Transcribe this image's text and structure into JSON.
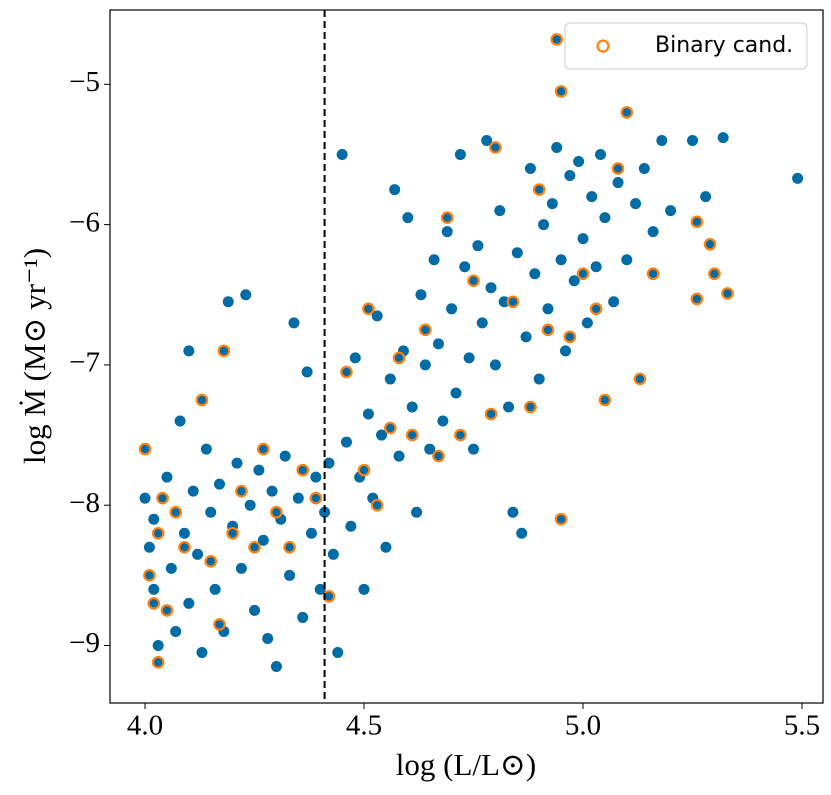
{
  "chart_data": {
    "type": "scatter",
    "xlabel": "log (L/L⊙)",
    "ylabel": "log Ṁ (M⊙ yr⁻¹)",
    "xlim": [
      3.92,
      5.548
    ],
    "ylim": [
      -9.41,
      -4.47
    ],
    "xticks": [
      {
        "value": 4,
        "label": "4.0"
      },
      {
        "value": 4.5,
        "label": "4.5"
      },
      {
        "value": 5,
        "label": "5.0"
      },
      {
        "value": 5.5,
        "label": "5.5"
      }
    ],
    "yticks": [
      {
        "value": -5,
        "label": "−5"
      },
      {
        "value": -6,
        "label": "−6"
      },
      {
        "value": -7,
        "label": "−7"
      },
      {
        "value": -8,
        "label": "−8"
      },
      {
        "value": -9,
        "label": "−9"
      }
    ],
    "vline": 4.41,
    "vline_color": "#000000",
    "legend": "upper right",
    "series": [
      {
        "color": "#006ba4",
        "marker": "filled",
        "x": [
          4.0,
          4.01,
          4.02,
          4.03,
          4.02,
          4.05,
          4.06,
          4.07,
          4.08,
          4.09,
          4.1,
          4.1,
          4.11,
          4.12,
          4.13,
          4.14,
          4.15,
          4.16,
          4.17,
          4.18,
          4.19,
          4.2,
          4.21,
          4.22,
          4.23,
          4.24,
          4.25,
          4.26,
          4.27,
          4.28,
          4.29,
          4.3,
          4.31,
          4.32,
          4.33,
          4.34,
          4.35,
          4.36,
          4.37,
          4.38,
          4.39,
          4.4,
          4.41,
          4.42,
          4.43,
          4.44,
          4.45,
          4.46,
          4.47,
          4.48,
          4.49,
          4.5,
          4.51,
          4.52,
          4.53,
          4.54,
          4.55,
          4.56,
          4.57,
          4.58,
          4.59,
          4.6,
          4.61,
          4.62,
          4.63,
          4.64,
          4.65,
          4.66,
          4.67,
          4.68,
          4.69,
          4.7,
          4.71,
          4.72,
          4.73,
          4.74,
          4.75,
          4.76,
          4.77,
          4.78,
          4.79,
          4.8,
          4.81,
          4.82,
          4.83,
          4.84,
          4.85,
          4.86,
          4.87,
          4.88,
          4.89,
          4.9,
          4.91,
          4.92,
          4.93,
          4.94,
          4.95,
          4.96,
          4.97,
          4.98,
          4.99,
          5.0,
          5.01,
          5.02,
          5.03,
          5.04,
          5.05,
          5.07,
          5.08,
          5.1,
          5.12,
          5.14,
          5.16,
          5.18,
          5.2,
          5.25,
          5.28,
          5.32,
          5.49
        ],
        "values": [
          -7.95,
          -8.3,
          -8.6,
          -9.0,
          -8.1,
          -7.8,
          -8.45,
          -8.9,
          -7.4,
          -8.2,
          -6.9,
          -8.7,
          -7.9,
          -8.35,
          -9.05,
          -7.6,
          -8.05,
          -8.6,
          -7.85,
          -8.9,
          -6.55,
          -8.15,
          -7.7,
          -8.45,
          -6.5,
          -8.0,
          -8.75,
          -7.75,
          -8.25,
          -8.95,
          -7.9,
          -9.15,
          -8.1,
          -7.65,
          -8.5,
          -6.7,
          -7.95,
          -8.8,
          -7.05,
          -8.2,
          -7.8,
          -8.6,
          -8.05,
          -7.7,
          -8.35,
          -9.05,
          -5.5,
          -7.55,
          -8.15,
          -6.95,
          -7.8,
          -8.6,
          -7.35,
          -7.95,
          -6.65,
          -7.5,
          -8.3,
          -7.1,
          -5.75,
          -7.65,
          -6.9,
          -5.95,
          -7.3,
          -8.05,
          -6.5,
          -7.0,
          -7.6,
          -6.25,
          -6.85,
          -7.4,
          -6.05,
          -6.6,
          -7.2,
          -5.5,
          -6.3,
          -6.95,
          -7.6,
          -6.15,
          -6.7,
          -5.4,
          -6.45,
          -7.0,
          -5.9,
          -6.55,
          -7.3,
          -8.05,
          -6.2,
          -8.2,
          -6.8,
          -5.6,
          -6.35,
          -7.1,
          -6.0,
          -6.6,
          -5.85,
          -5.45,
          -6.25,
          -6.9,
          -5.65,
          -6.4,
          -5.55,
          -6.1,
          -6.7,
          -5.8,
          -6.3,
          -5.5,
          -5.95,
          -6.55,
          -5.7,
          -6.25,
          -5.85,
          -5.6,
          -6.05,
          -5.4,
          -5.9,
          -5.4,
          -5.8,
          -5.38,
          -5.67
        ]
      },
      {
        "name": "Binary cand.",
        "color": "#ff800e",
        "face_color": "#006ba4",
        "marker": "ring",
        "x": [
          4.0,
          4.01,
          4.02,
          4.03,
          4.03,
          4.04,
          4.05,
          4.07,
          4.09,
          4.13,
          4.15,
          4.17,
          4.18,
          4.2,
          4.22,
          4.25,
          4.27,
          4.3,
          4.33,
          4.36,
          4.39,
          4.42,
          4.46,
          4.5,
          4.51,
          4.53,
          4.56,
          4.58,
          4.61,
          4.64,
          4.67,
          4.69,
          4.72,
          4.75,
          4.79,
          4.8,
          4.84,
          4.88,
          4.9,
          4.92,
          4.94,
          4.95,
          4.95,
          4.97,
          5.0,
          5.03,
          5.05,
          5.08,
          5.1,
          5.13,
          5.16,
          5.26,
          5.26,
          5.29,
          5.3,
          5.33
        ],
        "values": [
          -7.6,
          -8.5,
          -8.7,
          -8.2,
          -9.12,
          -7.95,
          -8.75,
          -8.05,
          -8.3,
          -7.25,
          -8.4,
          -8.85,
          -6.9,
          -8.2,
          -7.9,
          -8.3,
          -7.6,
          -8.05,
          -8.3,
          -7.75,
          -7.95,
          -8.65,
          -7.05,
          -7.75,
          -6.6,
          -8.0,
          -7.45,
          -6.95,
          -7.5,
          -6.75,
          -7.65,
          -5.95,
          -7.5,
          -6.4,
          -7.35,
          -5.45,
          -6.55,
          -7.3,
          -5.75,
          -6.75,
          -4.68,
          -8.1,
          -5.05,
          -6.8,
          -6.35,
          -6.6,
          -7.25,
          -5.6,
          -5.2,
          -7.1,
          -6.35,
          -5.98,
          -6.53,
          -6.14,
          -6.35,
          -6.49
        ]
      }
    ]
  }
}
